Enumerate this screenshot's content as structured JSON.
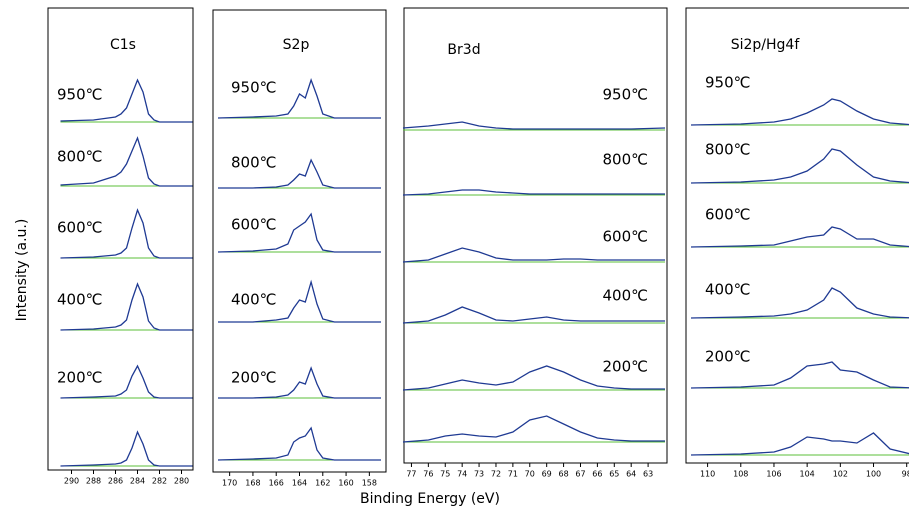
{
  "y_axis_label": "Intensity (a.u.)",
  "x_axis_label": "Binding Energy (eV)",
  "chart_data": [
    {
      "type": "line",
      "title": "C1s",
      "xlim": [
        291.5,
        279.5
      ],
      "xticks": [
        290,
        288,
        286,
        284,
        282,
        280
      ],
      "x": [
        291,
        288,
        286,
        285.5,
        285,
        284.5,
        284,
        283.5,
        283,
        282.5,
        282,
        279
      ],
      "series": [
        {
          "name": "950℃",
          "color": "#1f3a93",
          "values": [
            1,
            2,
            5,
            8,
            14,
            28,
            42,
            30,
            8,
            2,
            0,
            0
          ]
        },
        {
          "name": "800℃",
          "color": "#1f3a93",
          "values": [
            1,
            3,
            10,
            14,
            22,
            35,
            48,
            30,
            8,
            2,
            0,
            0
          ]
        },
        {
          "name": "600℃",
          "color": "#1f3a93",
          "values": [
            0,
            1,
            3,
            5,
            10,
            30,
            48,
            35,
            10,
            2,
            0,
            0
          ]
        },
        {
          "name": "400℃",
          "color": "#1f3a93",
          "values": [
            0,
            1,
            3,
            5,
            10,
            30,
            46,
            33,
            9,
            2,
            0,
            0
          ]
        },
        {
          "name": "200℃",
          "color": "#1f3a93",
          "values": [
            0,
            1,
            2,
            4,
            8,
            22,
            32,
            20,
            6,
            1,
            0,
            0
          ]
        },
        {
          "name": null,
          "color": "#1f3a93",
          "values": [
            0,
            1,
            2,
            3,
            6,
            18,
            34,
            22,
            6,
            1,
            0,
            0
          ]
        }
      ]
    },
    {
      "type": "line",
      "title": "S2p",
      "xlim": [
        171,
        157
      ],
      "xticks": [
        170,
        168,
        166,
        164,
        162,
        160,
        158
      ],
      "x": [
        171,
        168,
        166,
        165,
        164.5,
        164,
        163.5,
        163,
        162.5,
        162,
        161,
        157
      ],
      "series": [
        {
          "name": "950℃",
          "color": "#1f3a93",
          "values": [
            0,
            1,
            2,
            4,
            12,
            24,
            20,
            38,
            22,
            4,
            0,
            0
          ]
        },
        {
          "name": "800℃",
          "color": "#1f3a93",
          "values": [
            0,
            0,
            1,
            3,
            8,
            14,
            12,
            28,
            16,
            3,
            0,
            0
          ]
        },
        {
          "name": "600℃",
          "color": "#1f3a93",
          "values": [
            0,
            1,
            3,
            8,
            22,
            26,
            30,
            38,
            12,
            2,
            0,
            0
          ]
        },
        {
          "name": "400℃",
          "color": "#1f3a93",
          "values": [
            0,
            0,
            2,
            4,
            14,
            22,
            20,
            40,
            18,
            3,
            0,
            0
          ]
        },
        {
          "name": "200℃",
          "color": "#1f3a93",
          "values": [
            0,
            0,
            1,
            3,
            8,
            16,
            14,
            30,
            14,
            2,
            0,
            0
          ]
        },
        {
          "name": null,
          "color": "#1f3a93",
          "values": [
            0,
            1,
            2,
            5,
            18,
            22,
            24,
            32,
            10,
            2,
            0,
            0
          ]
        }
      ]
    },
    {
      "type": "line",
      "title": "Br3d",
      "xlim": [
        77.5,
        62
      ],
      "xticks": [
        77,
        76,
        75,
        74,
        73,
        72,
        71,
        70,
        69,
        68,
        67,
        66,
        65,
        64,
        63
      ],
      "x": [
        77.5,
        76,
        75,
        74,
        73,
        72,
        71,
        70,
        69,
        68,
        67,
        66,
        65,
        64,
        62
      ],
      "series": [
        {
          "name": "950℃",
          "color": "#1f3a93",
          "values": [
            2,
            4,
            6,
            8,
            4,
            2,
            1,
            1,
            1,
            1,
            1,
            1,
            1,
            1,
            2
          ]
        },
        {
          "name": "800℃",
          "color": "#1f3a93",
          "values": [
            0,
            1,
            3,
            5,
            5,
            3,
            2,
            1,
            1,
            1,
            1,
            1,
            1,
            1,
            1
          ]
        },
        {
          "name": "600℃",
          "color": "#1f3a93",
          "values": [
            0,
            2,
            8,
            14,
            10,
            4,
            2,
            2,
            2,
            3,
            3,
            2,
            2,
            2,
            2
          ]
        },
        {
          "name": "400℃",
          "color": "#1f3a93",
          "values": [
            0,
            2,
            8,
            16,
            10,
            3,
            2,
            4,
            6,
            3,
            2,
            2,
            2,
            2,
            2
          ]
        },
        {
          "name": "200℃",
          "color": "#1f3a93",
          "values": [
            0,
            2,
            6,
            10,
            7,
            5,
            8,
            18,
            24,
            18,
            10,
            4,
            2,
            1,
            1
          ]
        },
        {
          "name": null,
          "color": "#1f3a93",
          "values": [
            0,
            2,
            6,
            8,
            6,
            5,
            10,
            22,
            26,
            18,
            10,
            4,
            2,
            1,
            1
          ]
        }
      ]
    },
    {
      "type": "line",
      "title": "Si2p/Hg4f",
      "xlim": [
        111,
        97.5
      ],
      "xticks": [
        110,
        108,
        106,
        104,
        102,
        100,
        98
      ],
      "x": [
        111,
        108,
        106,
        105,
        104,
        103,
        102.5,
        102,
        101,
        100,
        99,
        97.5
      ],
      "series": [
        {
          "name": "950℃",
          "color": "#1f3a93",
          "values": [
            0,
            1,
            3,
            6,
            12,
            20,
            26,
            24,
            14,
            6,
            2,
            0
          ]
        },
        {
          "name": "800℃",
          "color": "#1f3a93",
          "values": [
            0,
            1,
            3,
            6,
            12,
            24,
            34,
            32,
            18,
            6,
            2,
            0
          ]
        },
        {
          "name": "600℃",
          "color": "#1f3a93",
          "values": [
            0,
            1,
            2,
            6,
            10,
            12,
            20,
            18,
            8,
            8,
            2,
            0
          ]
        },
        {
          "name": "400℃",
          "color": "#1f3a93",
          "values": [
            0,
            1,
            2,
            4,
            8,
            18,
            30,
            26,
            10,
            4,
            1,
            0
          ]
        },
        {
          "name": "200℃",
          "color": "#1f3a93",
          "values": [
            0,
            1,
            3,
            10,
            22,
            24,
            26,
            18,
            16,
            8,
            1,
            0
          ]
        },
        {
          "name": null,
          "color": "#1f3a93",
          "values": [
            0,
            1,
            3,
            8,
            18,
            16,
            14,
            14,
            12,
            22,
            6,
            0
          ]
        }
      ]
    }
  ]
}
